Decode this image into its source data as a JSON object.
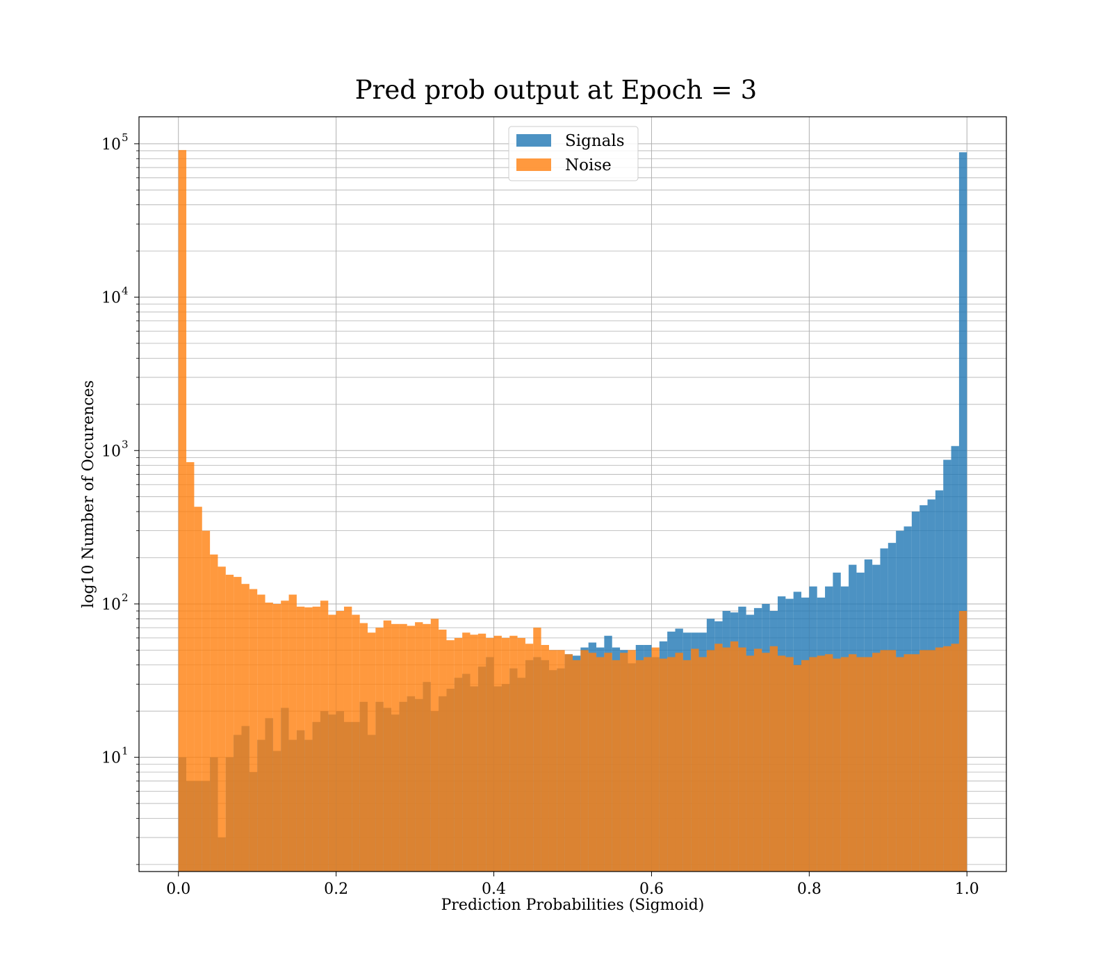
{
  "chart_data": {
    "type": "bar",
    "title": "Pred prob output at Epoch = 3",
    "xlabel": "Prediction Probabilities (Sigmoid)",
    "ylabel": "log10 Number of Occurences",
    "y_scale": "log",
    "xlim": [
      -0.05,
      1.05
    ],
    "ylim": [
      1.8,
      150000
    ],
    "x_ticks": [
      0.0,
      0.2,
      0.4,
      0.6,
      0.8,
      1.0
    ],
    "x_tick_labels": [
      "0.0",
      "0.2",
      "0.4",
      "0.6",
      "0.8",
      "1.0"
    ],
    "y_ticks": [
      10,
      100,
      1000,
      10000,
      100000
    ],
    "y_tick_labels": [
      {
        "base": "10",
        "exp": "1"
      },
      {
        "base": "10",
        "exp": "2"
      },
      {
        "base": "10",
        "exp": "3"
      },
      {
        "base": "10",
        "exp": "4"
      },
      {
        "base": "10",
        "exp": "5"
      }
    ],
    "grid": true,
    "legend_position": "top-center",
    "bin_edges_range": [
      0.0,
      1.0
    ],
    "bins": 100,
    "series": [
      {
        "name": "Signals",
        "color": "#1f77b4",
        "values": [
          10,
          7,
          7,
          7,
          10,
          3,
          10,
          14,
          16,
          8,
          13,
          18,
          11,
          21,
          13,
          15,
          13,
          17,
          20,
          19,
          20,
          17,
          17,
          23,
          14,
          23,
          21,
          19,
          23,
          25,
          24,
          31,
          20,
          25,
          28,
          33,
          35,
          29,
          39,
          45,
          29,
          30,
          38,
          33,
          43,
          45,
          43,
          37,
          38,
          47,
          46,
          52,
          56,
          52,
          62,
          52,
          50,
          41,
          54,
          54,
          45,
          57,
          66,
          69,
          65,
          65,
          65,
          80,
          77,
          90,
          88,
          96,
          85,
          94,
          100,
          90,
          112,
          108,
          120,
          110,
          130,
          110,
          130,
          160,
          130,
          180,
          160,
          195,
          180,
          230,
          250,
          300,
          320,
          400,
          440,
          480,
          550,
          870,
          1070,
          88000
        ]
      },
      {
        "name": "Noise",
        "color": "#ff7f0e",
        "values": [
          91000,
          840,
          430,
          300,
          210,
          175,
          155,
          150,
          135,
          125,
          115,
          102,
          100,
          105,
          115,
          96,
          95,
          96,
          105,
          85,
          90,
          96,
          85,
          75,
          65,
          70,
          78,
          74,
          74,
          72,
          76,
          74,
          80,
          68,
          58,
          60,
          65,
          63,
          64,
          60,
          62,
          60,
          62,
          60,
          55,
          70,
          54,
          50,
          50,
          47,
          43,
          50,
          48,
          45,
          48,
          43,
          48,
          50,
          43,
          45,
          52,
          44,
          45,
          48,
          43,
          51,
          45,
          50,
          55,
          52,
          57,
          52,
          46,
          51,
          48,
          53,
          46,
          45,
          40,
          43,
          45,
          46,
          47,
          44,
          45,
          47,
          45,
          45,
          48,
          50,
          50,
          45,
          47,
          47,
          50,
          50,
          52,
          53,
          55,
          90
        ]
      }
    ]
  }
}
